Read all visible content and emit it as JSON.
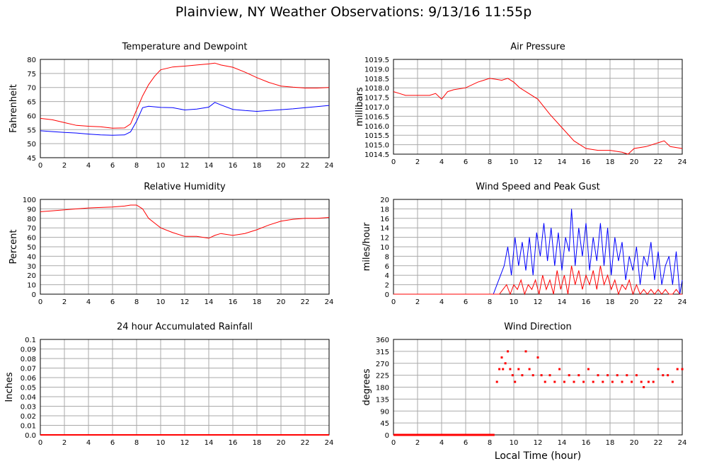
{
  "page_title": "Plainview, NY Weather Observations: 9/13/16 11:55p",
  "footer_xlabel": "Local Time (hour)",
  "colors": {
    "red": "#ff0000",
    "blue": "#0000ff",
    "grid": "#aaaaaa"
  },
  "chart_data": [
    {
      "id": "temp",
      "type": "line",
      "title": "Temperature and Dewpoint",
      "xlabel": "",
      "ylabel": "Fahrenheit",
      "xlim": [
        0,
        24
      ],
      "ylim": [
        45,
        80
      ],
      "yticks": [
        45,
        50,
        55,
        60,
        65,
        70,
        75,
        80
      ],
      "xticks": [
        0,
        2,
        4,
        6,
        8,
        10,
        12,
        14,
        16,
        18,
        20,
        22,
        24
      ],
      "grid": true,
      "series": [
        {
          "color": "#ff0000",
          "x": [
            0,
            1,
            2,
            3,
            4,
            5,
            6,
            7,
            7.5,
            8,
            8.5,
            9,
            9.5,
            10,
            11,
            12,
            13,
            14,
            14.5,
            15,
            16,
            17,
            18,
            19,
            20,
            21,
            22,
            23,
            24
          ],
          "y": [
            59,
            58.5,
            57.5,
            56.5,
            56.2,
            56,
            55.5,
            55.6,
            57,
            62,
            67,
            71,
            74,
            76.3,
            77.3,
            77.6,
            78,
            78.4,
            78.7,
            78,
            77.2,
            75.5,
            73.5,
            71.8,
            70.5,
            70.1,
            69.8,
            69.8,
            70
          ]
        },
        {
          "color": "#0000ff",
          "x": [
            0,
            1,
            2,
            3,
            4,
            5,
            6,
            7,
            7.5,
            8,
            8.5,
            9,
            10,
            11,
            12,
            13,
            14,
            14.5,
            15,
            16,
            17,
            18,
            19,
            20,
            21,
            22,
            23,
            24
          ],
          "y": [
            54.6,
            54.3,
            54,
            53.8,
            53.4,
            53.1,
            53,
            53.1,
            54.2,
            58,
            62.8,
            63.3,
            62.9,
            62.8,
            62,
            62.3,
            63,
            64.7,
            63.8,
            62.2,
            61.8,
            61.5,
            61.8,
            62.1,
            62.4,
            62.8,
            63.2,
            63.6
          ]
        }
      ]
    },
    {
      "id": "pressure",
      "type": "line",
      "title": "Air Pressure",
      "xlabel": "",
      "ylabel": "millibars",
      "xlim": [
        0,
        24
      ],
      "ylim": [
        1014.5,
        1019.5
      ],
      "yticks": [
        "1014.5",
        "1015.0",
        "1015.5",
        "1016.0",
        "1016.5",
        "1017.0",
        "1017.5",
        "1018.0",
        "1018.5",
        "1019.0",
        "1019.5"
      ],
      "xticks": [
        0,
        2,
        4,
        6,
        8,
        10,
        12,
        14,
        16,
        18,
        20,
        22,
        24
      ],
      "grid": true,
      "series": [
        {
          "color": "#ff0000",
          "x": [
            0,
            0.5,
            1,
            2,
            3,
            3.5,
            4,
            4.5,
            5,
            6,
            7,
            7.5,
            8,
            9,
            9.5,
            10,
            10.5,
            11,
            12,
            13,
            14,
            15,
            16,
            17,
            18,
            19,
            19.5,
            20,
            21,
            22,
            22.5,
            23,
            24
          ],
          "y": [
            1017.8,
            1017.7,
            1017.6,
            1017.6,
            1017.6,
            1017.7,
            1017.4,
            1017.8,
            1017.9,
            1018.0,
            1018.3,
            1018.4,
            1018.5,
            1018.4,
            1018.5,
            1018.3,
            1018.0,
            1017.8,
            1017.4,
            1016.6,
            1015.9,
            1015.2,
            1014.8,
            1014.7,
            1014.7,
            1014.6,
            1014.5,
            1014.8,
            1014.9,
            1015.1,
            1015.2,
            1014.9,
            1014.8
          ]
        }
      ]
    },
    {
      "id": "humidity",
      "type": "line",
      "title": "Relative Humidity",
      "xlabel": "",
      "ylabel": "Percent",
      "xlim": [
        0,
        24
      ],
      "ylim": [
        0,
        100
      ],
      "yticks": [
        0,
        10,
        20,
        30,
        40,
        50,
        60,
        70,
        80,
        90,
        100
      ],
      "xticks": [
        0,
        2,
        4,
        6,
        8,
        10,
        12,
        14,
        16,
        18,
        20,
        22,
        24
      ],
      "grid": true,
      "series": [
        {
          "color": "#ff0000",
          "x": [
            0,
            1,
            2,
            3,
            4,
            5,
            6,
            7,
            7.5,
            8,
            8.5,
            9,
            9.5,
            10,
            11,
            12,
            13,
            14,
            14.5,
            15,
            16,
            17,
            18,
            19,
            20,
            21,
            22,
            23,
            24
          ],
          "y": [
            87,
            88,
            89,
            90,
            91,
            91.5,
            92,
            93,
            94,
            94,
            90,
            80,
            75,
            70,
            65,
            61,
            61,
            59,
            62,
            64,
            62,
            64,
            68,
            73,
            77,
            79,
            80,
            80,
            81
          ]
        }
      ]
    },
    {
      "id": "wind",
      "type": "line",
      "title": "Wind Speed and Peak Gust",
      "xlabel": "",
      "ylabel": "miles/hour",
      "xlim": [
        0,
        24
      ],
      "ylim": [
        0,
        20
      ],
      "yticks": [
        0,
        2,
        4,
        6,
        8,
        10,
        12,
        14,
        16,
        18,
        20
      ],
      "xticks": [
        0,
        2,
        4,
        6,
        8,
        10,
        12,
        14,
        16,
        18,
        20,
        22,
        24
      ],
      "grid": true,
      "series": [
        {
          "color": "#0000ff",
          "x": [
            0,
            8.3,
            8.6,
            8.9,
            9.2,
            9.5,
            9.8,
            10.1,
            10.4,
            10.7,
            11,
            11.3,
            11.6,
            11.9,
            12.2,
            12.5,
            12.8,
            13.1,
            13.4,
            13.7,
            14,
            14.3,
            14.6,
            14.8,
            15.1,
            15.4,
            15.7,
            16,
            16.3,
            16.6,
            16.9,
            17.2,
            17.5,
            17.8,
            18.1,
            18.4,
            18.7,
            19,
            19.3,
            19.6,
            19.9,
            20.2,
            20.5,
            20.8,
            21.1,
            21.4,
            21.7,
            22,
            22.3,
            22.6,
            22.9,
            23.2,
            23.5,
            23.8,
            24
          ],
          "y": [
            0,
            0,
            2,
            4,
            6,
            10,
            4,
            12,
            6,
            11,
            5,
            12,
            4,
            13,
            8,
            15,
            7,
            14,
            6,
            13,
            5,
            12,
            9,
            18,
            6,
            14,
            8,
            15,
            5,
            12,
            7,
            15,
            6,
            14,
            4,
            12,
            7,
            11,
            3,
            8,
            5,
            10,
            2,
            8,
            6,
            11,
            3,
            9,
            2,
            6,
            8,
            2,
            9,
            0,
            3
          ]
        },
        {
          "color": "#ff0000",
          "x": [
            0,
            8.8,
            9.1,
            9.4,
            9.7,
            10,
            10.3,
            10.6,
            10.9,
            11.2,
            11.5,
            11.8,
            12.1,
            12.4,
            12.7,
            13,
            13.3,
            13.6,
            13.9,
            14.2,
            14.5,
            14.8,
            15.1,
            15.4,
            15.7,
            16,
            16.3,
            16.6,
            16.9,
            17.2,
            17.5,
            17.8,
            18.1,
            18.4,
            18.7,
            19,
            19.3,
            19.6,
            19.9,
            20.2,
            20.5,
            20.8,
            21.1,
            21.4,
            21.7,
            22,
            22.3,
            22.6,
            22.9,
            23.2,
            23.5,
            23.8,
            24
          ],
          "y": [
            0,
            0,
            1,
            2,
            0,
            2,
            1,
            3,
            0,
            2,
            1,
            3,
            0,
            4,
            1,
            3,
            0,
            5,
            1,
            4,
            0,
            6,
            2,
            5,
            1,
            4,
            2,
            5,
            1,
            6,
            2,
            4,
            1,
            3,
            0,
            2,
            1,
            3,
            0,
            2,
            0,
            1,
            0,
            1,
            0,
            1,
            0,
            1,
            0,
            0,
            1,
            0,
            0
          ]
        }
      ]
    },
    {
      "id": "rain",
      "type": "line",
      "title": "24 hour Accumulated Rainfall",
      "xlabel": "",
      "ylabel": "Inches",
      "xlim": [
        0,
        24
      ],
      "ylim": [
        0,
        0.1
      ],
      "yticks": [
        "0.0",
        "0.01",
        "0.02",
        "0.03",
        "0.04",
        "0.05",
        "0.06",
        "0.07",
        "0.08",
        "0.09",
        "0.1"
      ],
      "xticks": [
        0,
        2,
        4,
        6,
        8,
        10,
        12,
        14,
        16,
        18,
        20,
        22,
        24
      ],
      "grid": true,
      "series": [
        {
          "color": "#ff0000",
          "x": [
            0,
            24
          ],
          "y": [
            0,
            0
          ]
        }
      ]
    },
    {
      "id": "direction",
      "type": "scatter",
      "title": "Wind Direction",
      "xlabel": "Local Time (hour)",
      "ylabel": "degrees",
      "xlim": [
        0,
        24
      ],
      "ylim": [
        0,
        360
      ],
      "yticks": [
        0,
        45,
        90,
        135,
        180,
        225,
        270,
        315,
        360
      ],
      "xticks": [
        0,
        2,
        4,
        6,
        8,
        10,
        12,
        14,
        16,
        18,
        20,
        22,
        24
      ],
      "grid": true,
      "series": [
        {
          "color": "#ff0000",
          "x": [
            8.6,
            8.8,
            9.0,
            9.1,
            9.3,
            9.5,
            9.7,
            9.9,
            10.1,
            10.4,
            10.7,
            11.0,
            11.3,
            11.6,
            12.0,
            12.3,
            12.6,
            13.0,
            13.4,
            13.8,
            14.2,
            14.6,
            15.0,
            15.4,
            15.8,
            16.2,
            16.6,
            17.0,
            17.4,
            17.8,
            18.2,
            18.6,
            19.0,
            19.4,
            19.8,
            20.2,
            20.6,
            20.8,
            21.2,
            21.6,
            22.0,
            22.4,
            22.8,
            23.2,
            23.6,
            24.0
          ],
          "y": [
            200,
            248,
            292,
            248,
            270,
            315,
            248,
            225,
            200,
            248,
            225,
            315,
            248,
            225,
            292,
            225,
            200,
            225,
            200,
            248,
            200,
            225,
            200,
            225,
            200,
            248,
            200,
            225,
            200,
            225,
            200,
            225,
            200,
            225,
            200,
            225,
            200,
            180,
            200,
            200,
            248,
            225,
            225,
            200,
            248,
            248
          ]
        }
      ]
    }
  ]
}
